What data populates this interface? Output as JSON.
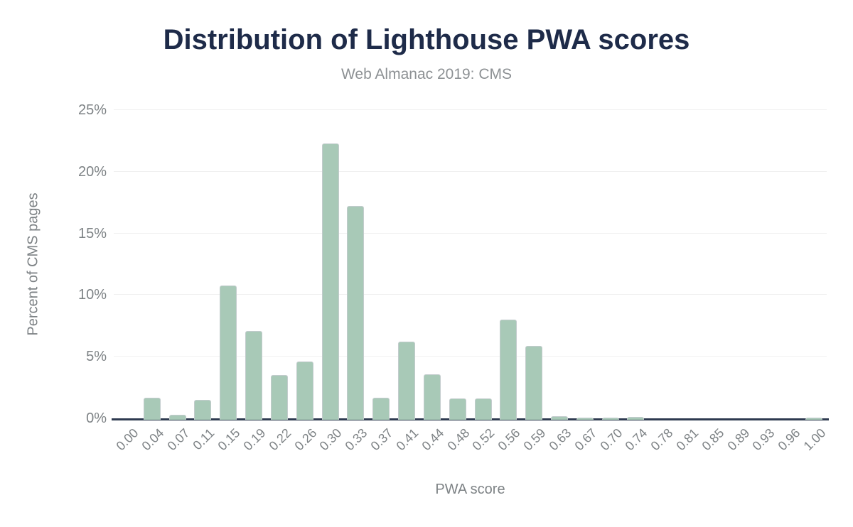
{
  "chart_data": {
    "type": "bar",
    "title": "Distribution of Lighthouse PWA scores",
    "subtitle": "Web Almanac 2019: CMS",
    "xlabel": "PWA score",
    "ylabel": "Percent of CMS pages",
    "ylim": [
      0,
      25
    ],
    "yticks": [
      0,
      5,
      10,
      15,
      20,
      25
    ],
    "ytick_labels": [
      "0%",
      "5%",
      "10%",
      "15%",
      "20%",
      "25%"
    ],
    "categories": [
      "0.00",
      "0.04",
      "0.07",
      "0.11",
      "0.15",
      "0.19",
      "0.22",
      "0.26",
      "0.30",
      "0.33",
      "0.37",
      "0.41",
      "0.44",
      "0.48",
      "0.52",
      "0.56",
      "0.59",
      "0.63",
      "0.67",
      "0.70",
      "0.74",
      "0.78",
      "0.81",
      "0.85",
      "0.89",
      "0.93",
      "0.96",
      "1.00"
    ],
    "values": [
      0,
      1.7,
      0.3,
      1.5,
      10.8,
      7.1,
      3.5,
      4.6,
      22.3,
      17.2,
      1.7,
      6.2,
      3.6,
      1.6,
      1.6,
      8.0,
      5.9,
      0.2,
      0.05,
      0.05,
      0.1,
      0,
      0,
      0,
      0,
      0,
      0,
      0.05
    ],
    "grid": "horizontal",
    "legend": "none",
    "colors": {
      "bar_fill": "#a8c9b7",
      "bar_stroke": "#c3cccd",
      "title": "#1e2b49",
      "subtitle": "#8d9194",
      "axis_line": "#2e3a50",
      "gridline": "#f0f0f0",
      "tick_labels": "#7d8285"
    }
  }
}
